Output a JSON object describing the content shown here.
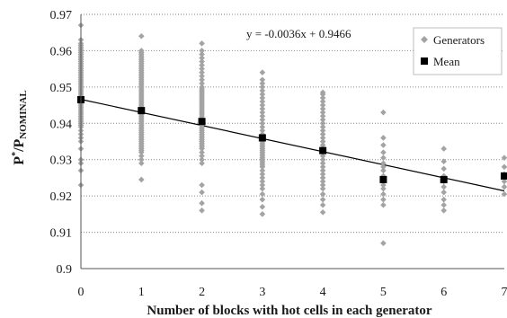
{
  "chart_data": {
    "type": "scatter",
    "xlabel": "Number of blocks with hot cells in each generator",
    "ylabel_main": "P",
    "ylabel_sup": "*",
    "ylabel_slash": "/P",
    "ylabel_sub": "NOMINAL",
    "xlim": [
      0,
      7
    ],
    "ylim": [
      0.9,
      0.97
    ],
    "x_ticks": [
      "0",
      "1",
      "2",
      "3",
      "4",
      "5",
      "6",
      "7"
    ],
    "y_ticks": [
      "0.9",
      "0.91",
      "0.92",
      "0.93",
      "0.94",
      "0.95",
      "0.96",
      "0.97"
    ],
    "grid": "horizontal dotted",
    "legend_position": "top-right",
    "annotation": "y = -0.0036x + 0.9466",
    "trendline": {
      "slope": -0.0036,
      "intercept": 0.9466
    },
    "colors": {
      "generators": "#a3a3a3",
      "mean": "#000000",
      "trend": "#000000"
    },
    "series": [
      {
        "name": "Generators",
        "marker": "diamond",
        "points": [
          [
            0,
            0.967
          ],
          [
            0,
            0.963
          ],
          [
            0,
            0.962
          ],
          [
            0,
            0.9615
          ],
          [
            0,
            0.961
          ],
          [
            0,
            0.9605
          ],
          [
            0,
            0.96
          ],
          [
            0,
            0.9595
          ],
          [
            0,
            0.959
          ],
          [
            0,
            0.9585
          ],
          [
            0,
            0.958
          ],
          [
            0,
            0.9575
          ],
          [
            0,
            0.957
          ],
          [
            0,
            0.9565
          ],
          [
            0,
            0.956
          ],
          [
            0,
            0.9555
          ],
          [
            0,
            0.955
          ],
          [
            0,
            0.9545
          ],
          [
            0,
            0.954
          ],
          [
            0,
            0.9535
          ],
          [
            0,
            0.953
          ],
          [
            0,
            0.9525
          ],
          [
            0,
            0.952
          ],
          [
            0,
            0.9515
          ],
          [
            0,
            0.951
          ],
          [
            0,
            0.9505
          ],
          [
            0,
            0.95
          ],
          [
            0,
            0.9495
          ],
          [
            0,
            0.949
          ],
          [
            0,
            0.9485
          ],
          [
            0,
            0.948
          ],
          [
            0,
            0.9475
          ],
          [
            0,
            0.947
          ],
          [
            0,
            0.9465
          ],
          [
            0,
            0.946
          ],
          [
            0,
            0.9455
          ],
          [
            0,
            0.945
          ],
          [
            0,
            0.9445
          ],
          [
            0,
            0.944
          ],
          [
            0,
            0.9435
          ],
          [
            0,
            0.943
          ],
          [
            0,
            0.9425
          ],
          [
            0,
            0.942
          ],
          [
            0,
            0.9415
          ],
          [
            0,
            0.941
          ],
          [
            0,
            0.9405
          ],
          [
            0,
            0.94
          ],
          [
            0,
            0.9395
          ],
          [
            0,
            0.939
          ],
          [
            0,
            0.938
          ],
          [
            0,
            0.937
          ],
          [
            0,
            0.936
          ],
          [
            0,
            0.935
          ],
          [
            0,
            0.933
          ],
          [
            0,
            0.93
          ],
          [
            0,
            0.929
          ],
          [
            0,
            0.927
          ],
          [
            0,
            0.923
          ],
          [
            1,
            0.964
          ],
          [
            1,
            0.96
          ],
          [
            1,
            0.9595
          ],
          [
            1,
            0.959
          ],
          [
            1,
            0.9585
          ],
          [
            1,
            0.958
          ],
          [
            1,
            0.9575
          ],
          [
            1,
            0.957
          ],
          [
            1,
            0.9565
          ],
          [
            1,
            0.956
          ],
          [
            1,
            0.9555
          ],
          [
            1,
            0.955
          ],
          [
            1,
            0.9545
          ],
          [
            1,
            0.954
          ],
          [
            1,
            0.9535
          ],
          [
            1,
            0.953
          ],
          [
            1,
            0.9525
          ],
          [
            1,
            0.952
          ],
          [
            1,
            0.9515
          ],
          [
            1,
            0.951
          ],
          [
            1,
            0.9505
          ],
          [
            1,
            0.95
          ],
          [
            1,
            0.9495
          ],
          [
            1,
            0.949
          ],
          [
            1,
            0.9485
          ],
          [
            1,
            0.948
          ],
          [
            1,
            0.9475
          ],
          [
            1,
            0.947
          ],
          [
            1,
            0.9465
          ],
          [
            1,
            0.946
          ],
          [
            1,
            0.9455
          ],
          [
            1,
            0.945
          ],
          [
            1,
            0.9445
          ],
          [
            1,
            0.944
          ],
          [
            1,
            0.9435
          ],
          [
            1,
            0.943
          ],
          [
            1,
            0.9425
          ],
          [
            1,
            0.942
          ],
          [
            1,
            0.9415
          ],
          [
            1,
            0.941
          ],
          [
            1,
            0.9405
          ],
          [
            1,
            0.94
          ],
          [
            1,
            0.9395
          ],
          [
            1,
            0.939
          ],
          [
            1,
            0.9385
          ],
          [
            1,
            0.938
          ],
          [
            1,
            0.9375
          ],
          [
            1,
            0.937
          ],
          [
            1,
            0.9365
          ],
          [
            1,
            0.936
          ],
          [
            1,
            0.9355
          ],
          [
            1,
            0.935
          ],
          [
            1,
            0.9345
          ],
          [
            1,
            0.934
          ],
          [
            1,
            0.9335
          ],
          [
            1,
            0.933
          ],
          [
            1,
            0.9325
          ],
          [
            1,
            0.932
          ],
          [
            1,
            0.931
          ],
          [
            1,
            0.93
          ],
          [
            1,
            0.929
          ],
          [
            1,
            0.9245
          ],
          [
            2,
            0.962
          ],
          [
            2,
            0.96
          ],
          [
            2,
            0.959
          ],
          [
            2,
            0.958
          ],
          [
            2,
            0.957
          ],
          [
            2,
            0.956
          ],
          [
            2,
            0.955
          ],
          [
            2,
            0.954
          ],
          [
            2,
            0.953
          ],
          [
            2,
            0.952
          ],
          [
            2,
            0.951
          ],
          [
            2,
            0.95
          ],
          [
            2,
            0.9495
          ],
          [
            2,
            0.949
          ],
          [
            2,
            0.9485
          ],
          [
            2,
            0.948
          ],
          [
            2,
            0.9475
          ],
          [
            2,
            0.947
          ],
          [
            2,
            0.9465
          ],
          [
            2,
            0.946
          ],
          [
            2,
            0.9455
          ],
          [
            2,
            0.945
          ],
          [
            2,
            0.9445
          ],
          [
            2,
            0.944
          ],
          [
            2,
            0.9435
          ],
          [
            2,
            0.943
          ],
          [
            2,
            0.9425
          ],
          [
            2,
            0.942
          ],
          [
            2,
            0.9415
          ],
          [
            2,
            0.941
          ],
          [
            2,
            0.9405
          ],
          [
            2,
            0.94
          ],
          [
            2,
            0.9395
          ],
          [
            2,
            0.939
          ],
          [
            2,
            0.9385
          ],
          [
            2,
            0.938
          ],
          [
            2,
            0.9375
          ],
          [
            2,
            0.937
          ],
          [
            2,
            0.9365
          ],
          [
            2,
            0.936
          ],
          [
            2,
            0.9355
          ],
          [
            2,
            0.935
          ],
          [
            2,
            0.9345
          ],
          [
            2,
            0.934
          ],
          [
            2,
            0.9335
          ],
          [
            2,
            0.933
          ],
          [
            2,
            0.932
          ],
          [
            2,
            0.931
          ],
          [
            2,
            0.93
          ],
          [
            2,
            0.929
          ],
          [
            2,
            0.923
          ],
          [
            2,
            0.921
          ],
          [
            2,
            0.918
          ],
          [
            2,
            0.916
          ],
          [
            3,
            0.954
          ],
          [
            3,
            0.952
          ],
          [
            3,
            0.951
          ],
          [
            3,
            0.95
          ],
          [
            3,
            0.949
          ],
          [
            3,
            0.948
          ],
          [
            3,
            0.947
          ],
          [
            3,
            0.946
          ],
          [
            3,
            0.945
          ],
          [
            3,
            0.944
          ],
          [
            3,
            0.943
          ],
          [
            3,
            0.942
          ],
          [
            3,
            0.941
          ],
          [
            3,
            0.94
          ],
          [
            3,
            0.939
          ],
          [
            3,
            0.938
          ],
          [
            3,
            0.937
          ],
          [
            3,
            0.9365
          ],
          [
            3,
            0.936
          ],
          [
            3,
            0.9355
          ],
          [
            3,
            0.935
          ],
          [
            3,
            0.9345
          ],
          [
            3,
            0.934
          ],
          [
            3,
            0.9335
          ],
          [
            3,
            0.933
          ],
          [
            3,
            0.9325
          ],
          [
            3,
            0.932
          ],
          [
            3,
            0.9315
          ],
          [
            3,
            0.931
          ],
          [
            3,
            0.9305
          ],
          [
            3,
            0.93
          ],
          [
            3,
            0.9295
          ],
          [
            3,
            0.929
          ],
          [
            3,
            0.9285
          ],
          [
            3,
            0.928
          ],
          [
            3,
            0.927
          ],
          [
            3,
            0.926
          ],
          [
            3,
            0.925
          ],
          [
            3,
            0.924
          ],
          [
            3,
            0.923
          ],
          [
            3,
            0.922
          ],
          [
            3,
            0.9205
          ],
          [
            3,
            0.919
          ],
          [
            3,
            0.917
          ],
          [
            3,
            0.915
          ],
          [
            4,
            0.9485
          ],
          [
            4,
            0.948
          ],
          [
            4,
            0.947
          ],
          [
            4,
            0.946
          ],
          [
            4,
            0.945
          ],
          [
            4,
            0.944
          ],
          [
            4,
            0.943
          ],
          [
            4,
            0.942
          ],
          [
            4,
            0.941
          ],
          [
            4,
            0.94
          ],
          [
            4,
            0.939
          ],
          [
            4,
            0.938
          ],
          [
            4,
            0.937
          ],
          [
            4,
            0.936
          ],
          [
            4,
            0.935
          ],
          [
            4,
            0.934
          ],
          [
            4,
            0.933
          ],
          [
            4,
            0.932
          ],
          [
            4,
            0.931
          ],
          [
            4,
            0.93
          ],
          [
            4,
            0.929
          ],
          [
            4,
            0.928
          ],
          [
            4,
            0.927
          ],
          [
            4,
            0.926
          ],
          [
            4,
            0.925
          ],
          [
            4,
            0.924
          ],
          [
            4,
            0.923
          ],
          [
            4,
            0.922
          ],
          [
            4,
            0.9205
          ],
          [
            4,
            0.919
          ],
          [
            4,
            0.9175
          ],
          [
            4,
            0.9155
          ],
          [
            5,
            0.943
          ],
          [
            5,
            0.936
          ],
          [
            5,
            0.934
          ],
          [
            5,
            0.932
          ],
          [
            5,
            0.9305
          ],
          [
            5,
            0.929
          ],
          [
            5,
            0.928
          ],
          [
            5,
            0.927
          ],
          [
            5,
            0.9255
          ],
          [
            5,
            0.924
          ],
          [
            5,
            0.923
          ],
          [
            5,
            0.922
          ],
          [
            5,
            0.9205
          ],
          [
            5,
            0.919
          ],
          [
            5,
            0.9175
          ],
          [
            5,
            0.907
          ],
          [
            6,
            0.933
          ],
          [
            6,
            0.9295
          ],
          [
            6,
            0.9275
          ],
          [
            6,
            0.9255
          ],
          [
            6,
            0.924
          ],
          [
            6,
            0.9225
          ],
          [
            6,
            0.921
          ],
          [
            6,
            0.919
          ],
          [
            6,
            0.9175
          ],
          [
            6,
            0.916
          ],
          [
            7,
            0.9305
          ],
          [
            7,
            0.928
          ],
          [
            7,
            0.926
          ],
          [
            7,
            0.924
          ],
          [
            7,
            0.9225
          ],
          [
            7,
            0.9205
          ]
        ]
      },
      {
        "name": "Mean",
        "marker": "square",
        "points": [
          [
            0,
            0.9465
          ],
          [
            1,
            0.9435
          ],
          [
            2,
            0.9405
          ],
          [
            3,
            0.936
          ],
          [
            4,
            0.9325
          ],
          [
            5,
            0.9245
          ],
          [
            6,
            0.9245
          ],
          [
            7,
            0.9255
          ]
        ]
      }
    ]
  }
}
